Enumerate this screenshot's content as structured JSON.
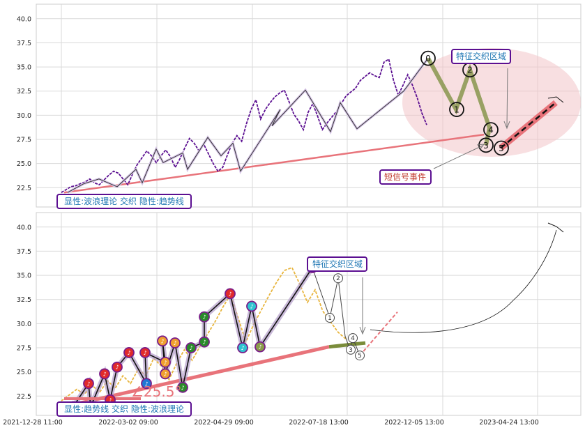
{
  "chart_data": [
    {
      "type": "line",
      "panel": "top",
      "ylim": [
        20.5,
        41.5
      ],
      "yticks": [
        "22.5",
        "25.0",
        "27.5",
        "30.0",
        "32.5",
        "35.0",
        "37.5",
        "40.0"
      ],
      "ytick_values": [
        22.5,
        25.0,
        27.5,
        30.0,
        32.5,
        35.0,
        37.5,
        40.0
      ],
      "grid": true,
      "series": [
        {
          "values": [
            22.0,
            22.3,
            22.6,
            22.7,
            22.9,
            23.1,
            23.4,
            23.0,
            22.8,
            23.3,
            23.8,
            24.2,
            24.0,
            23.4,
            22.8,
            23.9,
            24.9,
            25.6,
            26.3,
            25.8,
            25.1,
            25.8,
            26.4,
            25.7,
            24.6,
            25.5,
            26.6,
            27.6,
            27.1,
            26.3,
            27.0,
            26.0,
            25.0,
            24.2,
            24.6,
            25.9,
            27.1,
            27.9,
            27.3,
            29.1,
            30.6,
            31.6,
            29.6,
            30.6,
            31.3,
            31.9,
            32.3,
            32.6,
            31.4,
            30.1,
            29.4,
            28.5,
            30.3,
            31.2,
            29.9,
            28.5,
            29.2,
            29.8,
            30.4,
            31.2,
            32.0,
            32.4,
            32.8,
            33.6,
            34.0,
            34.4,
            34.1,
            33.9,
            35.5,
            35.8,
            33.6,
            32.1,
            33.1,
            34.2,
            33.1,
            31.8,
            30.2,
            29.0
          ]
        },
        {
          "values": [
            22.0,
            22.9,
            23.4,
            22.6,
            24.4,
            23.0,
            26.5,
            25.1,
            26.1,
            24.4,
            27.7,
            25.8,
            27.1,
            24.2,
            30.6,
            28.9,
            32.6,
            28.3,
            31.3,
            28.6,
            32.5,
            35.9,
            30.6,
            34.7,
            28.7,
            26.9,
            28.5,
            26.6,
            31.3
          ]
        }
      ],
      "wave_labels": [
        "0",
        "1",
        "2",
        "3",
        "4",
        "5"
      ],
      "wave_values": [
        35.9,
        30.6,
        34.7,
        26.9,
        28.5,
        26.6
      ],
      "trendline": {
        "from": 22.0,
        "to": 28.0
      },
      "forecast": {
        "from": 26.6,
        "to": 31.3
      },
      "annotation_box": "特征交织区域",
      "signal_label": "短信号事件",
      "legend": "显性:波浪理论 交织 隐性:趋势线"
    },
    {
      "type": "line",
      "panel": "bottom",
      "ylim": [
        20.5,
        41.5
      ],
      "yticks": [
        "22.5",
        "25.0",
        "27.5",
        "30.0",
        "32.5",
        "35.0",
        "37.5",
        "40.0"
      ],
      "ytick_values": [
        22.5,
        25.0,
        27.5,
        30.0,
        32.5,
        35.0,
        37.5,
        40.0
      ],
      "xticks": [
        "2021-12-28 11:00",
        "2022-03-02 09:00",
        "2022-04-29 09:00",
        "2022-07-18 13:00",
        "2022-12-05 13:00",
        "2023-04-24 13:00"
      ],
      "grid": true,
      "series": [
        {
          "values": [
            22.0,
            22.6,
            23.2,
            22.7,
            23.6,
            22.9,
            24.1,
            23.3,
            24.6,
            23.8,
            25.3,
            24.6,
            26.4,
            25.6,
            24.2,
            25.9,
            27.3,
            26.2,
            27.6,
            28.9,
            30.2,
            31.7,
            33.0,
            30.6,
            28.1,
            29.9,
            31.4,
            32.9,
            34.3,
            35.5,
            35.8,
            34.1,
            32.2,
            33.5,
            31.3,
            30.2,
            29.1,
            28.4
          ]
        },
        {
          "values": [
            21.4,
            23.8,
            21.4,
            24.8,
            22.1,
            25.5,
            27.0,
            23.8,
            27.0,
            26.0,
            28.2,
            24.8,
            28.0,
            23.4,
            27.5,
            28.1,
            30.7,
            33.1,
            27.5,
            31.8,
            27.6,
            35.8,
            30.6,
            34.7,
            28.7,
            27.3,
            28.5,
            26.7,
            31.2
          ]
        }
      ],
      "wave_labels": [
        "1",
        "2",
        "3",
        "4",
        "5"
      ],
      "wave_values": [
        30.6,
        34.7,
        27.3,
        28.5,
        26.7
      ],
      "trendline": {
        "from": 21.4,
        "to": 28.0
      },
      "angle_label": "∠25.5°",
      "annotation_box": "特征交织区域",
      "legend": "显性:趋势线 交织 隐性:波浪理论"
    }
  ]
}
